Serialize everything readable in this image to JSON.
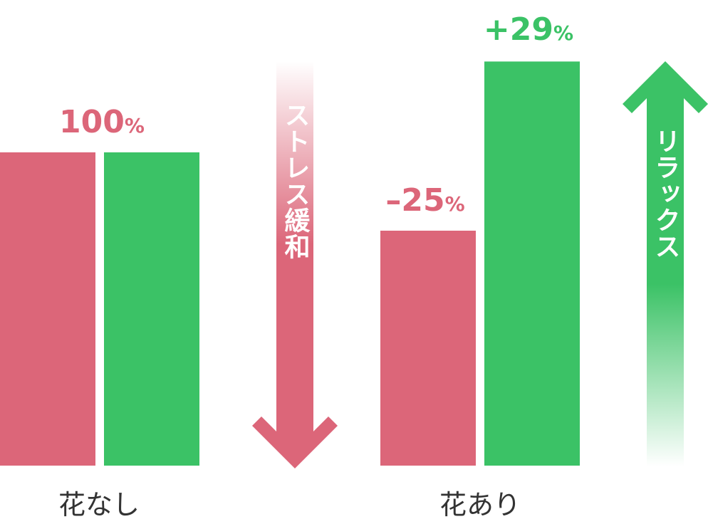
{
  "chart_data": {
    "type": "bar",
    "categories": [
      "花なし",
      "花あり"
    ],
    "series": [
      {
        "color": "#dc6679",
        "values": [
          100,
          75
        ]
      },
      {
        "color": "#3bc266",
        "values": [
          100,
          129
        ]
      }
    ],
    "ylim": [
      0,
      150
    ],
    "grid": false,
    "value_labels": [
      {
        "number": "100",
        "unit": "%",
        "color": "#dc6679"
      },
      {
        "number": "–25",
        "unit": "%",
        "color": "#dc6679"
      },
      {
        "number": "+29",
        "unit": "%",
        "color": "#3bc266"
      }
    ],
    "annotations": [
      {
        "text": "ストレス緩和",
        "direction": "down",
        "color": "#dc6679"
      },
      {
        "text": "リラックス",
        "direction": "up",
        "color": "#3bc266"
      }
    ]
  }
}
